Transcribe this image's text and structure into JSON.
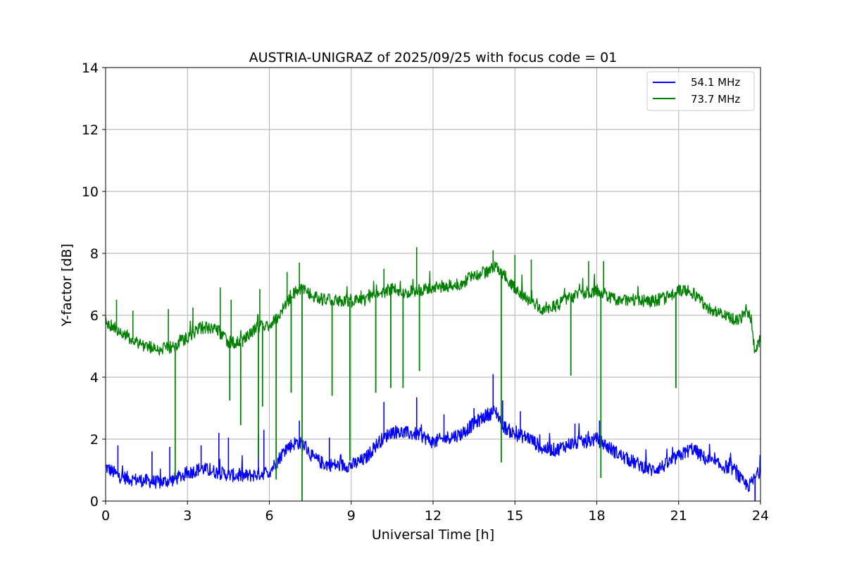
{
  "chart_data": {
    "type": "line",
    "title": "AUSTRIA-UNIGRAZ of 2025/09/25 with focus code = 01",
    "xlabel": "Universal Time [h]",
    "ylabel": "Y-factor [dB]",
    "xlim": [
      0,
      24
    ],
    "ylim": [
      0,
      14
    ],
    "xticks": [
      0,
      3,
      6,
      9,
      12,
      15,
      18,
      21,
      24
    ],
    "yticks": [
      0,
      2,
      4,
      6,
      8,
      10,
      12,
      14
    ],
    "grid": true,
    "legend_position": "top-right",
    "series": [
      {
        "name": "54.1 MHz",
        "legend_label": "54.1 MHz",
        "color": "#0000ff",
        "x": [
          0,
          0.5,
          1,
          1.5,
          2,
          2.5,
          3,
          3.5,
          4,
          4.5,
          5,
          5.5,
          6,
          6.3,
          6.6,
          7,
          7.3,
          7.6,
          8,
          8.5,
          9,
          9.5,
          10,
          10.5,
          11,
          11.5,
          12,
          12.5,
          13,
          13.5,
          14,
          14.3,
          14.6,
          15,
          15.5,
          16,
          16.5,
          17,
          17.5,
          18,
          18.5,
          19,
          19.5,
          20,
          20.5,
          21,
          21.5,
          22,
          22.5,
          23,
          23.4,
          23.6,
          24
        ],
        "y": [
          1.1,
          0.8,
          0.7,
          0.65,
          0.6,
          0.7,
          0.9,
          1.05,
          0.95,
          0.85,
          0.8,
          0.85,
          0.95,
          1.3,
          1.7,
          1.9,
          1.8,
          1.4,
          1.2,
          1.15,
          1.15,
          1.35,
          1.9,
          2.25,
          2.2,
          2.15,
          1.9,
          2.05,
          2.15,
          2.5,
          2.8,
          2.9,
          2.4,
          2.15,
          2.05,
          1.7,
          1.65,
          1.85,
          1.9,
          2.0,
          1.7,
          1.4,
          1.2,
          1.0,
          1.15,
          1.45,
          1.7,
          1.35,
          1.15,
          1.05,
          0.55,
          0.5,
          1.0
        ],
        "spikes": [
          {
            "x": 0.45,
            "y": 1.8
          },
          {
            "x": 1.7,
            "y": 1.6
          },
          {
            "x": 2.35,
            "y": 1.75
          },
          {
            "x": 3.5,
            "y": 1.8
          },
          {
            "x": 4.15,
            "y": 2.2
          },
          {
            "x": 4.5,
            "y": 2.05
          },
          {
            "x": 5.6,
            "y": 2.15
          },
          {
            "x": 5.8,
            "y": 2.3
          },
          {
            "x": 7.1,
            "y": 2.6
          },
          {
            "x": 8.2,
            "y": 2.05
          },
          {
            "x": 10.2,
            "y": 3.2
          },
          {
            "x": 11.4,
            "y": 3.35
          },
          {
            "x": 12.4,
            "y": 2.8
          },
          {
            "x": 13.5,
            "y": 3.0
          },
          {
            "x": 14.2,
            "y": 4.1
          },
          {
            "x": 14.55,
            "y": 3.25
          },
          {
            "x": 15.2,
            "y": 2.9
          },
          {
            "x": 17.2,
            "y": 2.5
          },
          {
            "x": 18.1,
            "y": 2.6
          },
          {
            "x": 23.2,
            "y": 1.0
          }
        ],
        "dips": [
          {
            "x": 23.8,
            "y": 0.0
          }
        ]
      },
      {
        "name": "73.7 MHz",
        "legend_label": "73.7 MHz",
        "color": "#008000",
        "x": [
          0,
          0.5,
          1,
          1.5,
          2,
          2.5,
          3,
          3.5,
          4,
          4.5,
          5,
          5.5,
          6,
          6.3,
          6.6,
          7,
          7.3,
          7.6,
          8,
          8.5,
          9,
          9.5,
          10,
          10.5,
          11,
          11.5,
          12,
          12.5,
          13,
          13.5,
          14,
          14.3,
          14.6,
          15,
          15.5,
          16,
          16.5,
          17,
          17.5,
          18,
          18.5,
          19,
          19.5,
          20,
          20.5,
          21,
          21.5,
          22,
          22.5,
          23,
          23.2,
          23.5,
          23.65,
          23.8,
          24
        ],
        "y": [
          5.8,
          5.5,
          5.2,
          5.0,
          4.9,
          5.0,
          5.3,
          5.6,
          5.6,
          5.15,
          5.1,
          5.6,
          5.7,
          5.9,
          6.4,
          6.8,
          6.9,
          6.6,
          6.5,
          6.5,
          6.45,
          6.5,
          6.7,
          6.85,
          6.75,
          6.8,
          6.9,
          6.95,
          7.0,
          7.3,
          7.4,
          7.6,
          7.3,
          6.9,
          6.5,
          6.2,
          6.3,
          6.55,
          6.7,
          6.8,
          6.55,
          6.5,
          6.5,
          6.45,
          6.55,
          6.8,
          6.75,
          6.3,
          6.05,
          5.9,
          5.8,
          6.2,
          5.9,
          4.8,
          5.3
        ],
        "spikes": [
          {
            "x": 0.4,
            "y": 6.5
          },
          {
            "x": 1.0,
            "y": 6.15
          },
          {
            "x": 2.3,
            "y": 6.2
          },
          {
            "x": 3.2,
            "y": 6.25
          },
          {
            "x": 4.2,
            "y": 6.9
          },
          {
            "x": 4.6,
            "y": 6.5
          },
          {
            "x": 5.65,
            "y": 6.85
          },
          {
            "x": 6.65,
            "y": 7.4
          },
          {
            "x": 7.1,
            "y": 7.7
          },
          {
            "x": 10.2,
            "y": 7.5
          },
          {
            "x": 11.4,
            "y": 8.2
          },
          {
            "x": 14.2,
            "y": 8.1
          },
          {
            "x": 15.0,
            "y": 7.95
          },
          {
            "x": 15.6,
            "y": 7.8
          },
          {
            "x": 17.7,
            "y": 7.75
          },
          {
            "x": 18.25,
            "y": 7.75
          }
        ],
        "dips": [
          {
            "x": 2.55,
            "y": 0.75
          },
          {
            "x": 4.55,
            "y": 3.25
          },
          {
            "x": 4.95,
            "y": 2.45
          },
          {
            "x": 5.6,
            "y": 1.4
          },
          {
            "x": 5.75,
            "y": 3.05
          },
          {
            "x": 6.25,
            "y": 0.7
          },
          {
            "x": 6.8,
            "y": 3.5
          },
          {
            "x": 7.2,
            "y": 0.0
          },
          {
            "x": 8.3,
            "y": 3.4
          },
          {
            "x": 8.95,
            "y": 1.3
          },
          {
            "x": 9.9,
            "y": 3.5
          },
          {
            "x": 10.45,
            "y": 3.65
          },
          {
            "x": 10.9,
            "y": 3.65
          },
          {
            "x": 11.5,
            "y": 4.2
          },
          {
            "x": 14.5,
            "y": 1.25
          },
          {
            "x": 17.05,
            "y": 4.05
          },
          {
            "x": 18.15,
            "y": 0.75
          },
          {
            "x": 20.9,
            "y": 3.65
          }
        ]
      }
    ]
  }
}
